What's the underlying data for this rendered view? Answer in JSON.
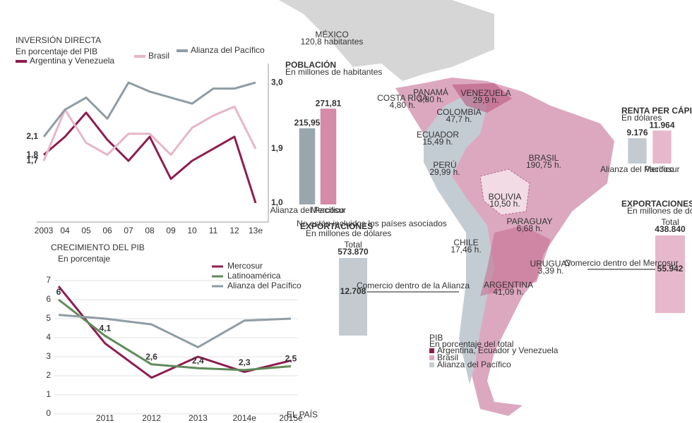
{
  "chart_data": [
    {
      "type": "line",
      "title": "INVERSIÓN DIRECTA",
      "subtitle": "En porcentaje del PIB",
      "categories": [
        "2003",
        "04",
        "05",
        "06",
        "07",
        "08",
        "09",
        "10",
        "11",
        "12",
        "13e"
      ],
      "ylim": [
        0.8,
        3.2
      ],
      "series": [
        {
          "name": "Argentina y Venezuela",
          "color": "#8e1d4f",
          "values": [
            1.8,
            2.1,
            2.5,
            2.05,
            1.7,
            2.1,
            1.4,
            1.7,
            1.9,
            2.1,
            1.0
          ],
          "value_labels": [
            "1,8",
            null,
            null,
            null,
            null,
            null,
            null,
            null,
            null,
            null,
            "1,0"
          ]
        },
        {
          "name": "Brasil",
          "color": "#e6b6c6",
          "values": [
            1.7,
            2.55,
            2.0,
            1.8,
            2.15,
            2.15,
            1.8,
            2.25,
            2.45,
            2.6,
            1.9
          ],
          "value_labels": [
            "1,7",
            null,
            null,
            null,
            null,
            null,
            null,
            null,
            null,
            null,
            "1,9"
          ]
        },
        {
          "name": "Alianza del Pacífico",
          "color": "#8f9ca4",
          "values": [
            2.1,
            2.55,
            2.75,
            2.4,
            3.0,
            2.85,
            2.75,
            2.65,
            2.9,
            2.9,
            3.0
          ],
          "value_labels": [
            "2,1",
            null,
            null,
            null,
            null,
            null,
            null,
            null,
            null,
            null,
            "3,0"
          ]
        }
      ]
    },
    {
      "type": "line",
      "title": "CRECIMIENTO DEL PIB",
      "subtitle": "En porcentaje",
      "categories": [
        null,
        "2011",
        "2012",
        "2013",
        "2014e",
        "2015e"
      ],
      "ylim": [
        0,
        7
      ],
      "yticks": [
        0,
        1,
        2,
        3,
        4,
        5,
        6,
        7
      ],
      "grid": true,
      "series": [
        {
          "name": "Mercosur",
          "color": "#8e1d4f",
          "values": [
            6.7,
            3.7,
            1.9,
            3.0,
            2.2,
            2.8
          ]
        },
        {
          "name": "Latinoamérica",
          "color": "#5f8a5a",
          "values": [
            6,
            4.1,
            2.6,
            2.4,
            2.3,
            2.5
          ],
          "value_labels": [
            "6",
            "4,1",
            "2,6",
            "2,4",
            "2,3",
            "2,5"
          ]
        },
        {
          "name": "Alianza del Pacífico",
          "color": "#8f9ca4",
          "values": [
            5.2,
            5.0,
            4.7,
            3.5,
            4.9,
            5.0
          ]
        }
      ]
    },
    {
      "type": "bar",
      "title": "POBLACIÓN",
      "subtitle": "En millones de habitantes",
      "categories": [
        "Alianza del Pacífico",
        "Mercosur"
      ],
      "ylim": [
        0,
        300
      ],
      "values": [
        215.95,
        271.81
      ],
      "value_labels": [
        "215,95",
        "271,81"
      ],
      "colors": [
        "#9aa6ae",
        "#d58aa7"
      ],
      "note": "No están incluidos los países asociados"
    },
    {
      "type": "bar",
      "title": "RENTA PER CÁPITA",
      "subtitle": "En dólares",
      "categories": [
        "Alianza del Pacífico",
        "Mercosur"
      ],
      "ylim": [
        0,
        12000
      ],
      "values": [
        9176,
        11964
      ],
      "value_labels": [
        "9.176",
        "11.964"
      ],
      "colors": [
        "#c3cbd1",
        "#e7b8cb"
      ]
    }
  ],
  "map": {
    "countries": [
      {
        "name": "MÉXICO",
        "population": "120,8 habitantes"
      },
      {
        "name": "COSTA RICA",
        "population": "4,80 h."
      },
      {
        "name": "PANAMÁ",
        "population": "3,80 h."
      },
      {
        "name": "VENEZUELA",
        "population": "29,9 h."
      },
      {
        "name": "COLOMBIA",
        "population": "47,7 h."
      },
      {
        "name": "ECUADOR",
        "population": "15,49 h."
      },
      {
        "name": "PERÚ",
        "population": "29,99 h."
      },
      {
        "name": "BRASIL",
        "population": "190,75 h."
      },
      {
        "name": "BOLIVIA",
        "population": "10,50 h."
      },
      {
        "name": "PARAGUAY",
        "population": "6,68 h."
      },
      {
        "name": "CHILE",
        "population": "17,46 h."
      },
      {
        "name": "ARGENTINA",
        "population": "41,09 h."
      },
      {
        "name": "URUGUAY",
        "population": "3,39 h."
      }
    ],
    "exports_alianza": {
      "title": "EXPORTACIONES",
      "subtitle": "En millones de dólares",
      "total_label": "Total",
      "total": "573.870",
      "inner": "12.708",
      "inner_label": "Comercio dentro de la Alianza"
    },
    "exports_mercosur": {
      "title": "EXPORTACIONES",
      "subtitle": "En millones de dólares",
      "total_label": "Total",
      "total": "438.840",
      "inner": "55.942",
      "inner_label": "Comercio dentro del Mercosur"
    },
    "pib_legend": {
      "title": "PIB",
      "subtitle": "En porcentaje del total",
      "items": [
        "Argentina, Ecuador y Venezuela",
        "Brasil",
        "Alianza del Pacífico"
      ]
    }
  },
  "credit": "EL PAÍS"
}
